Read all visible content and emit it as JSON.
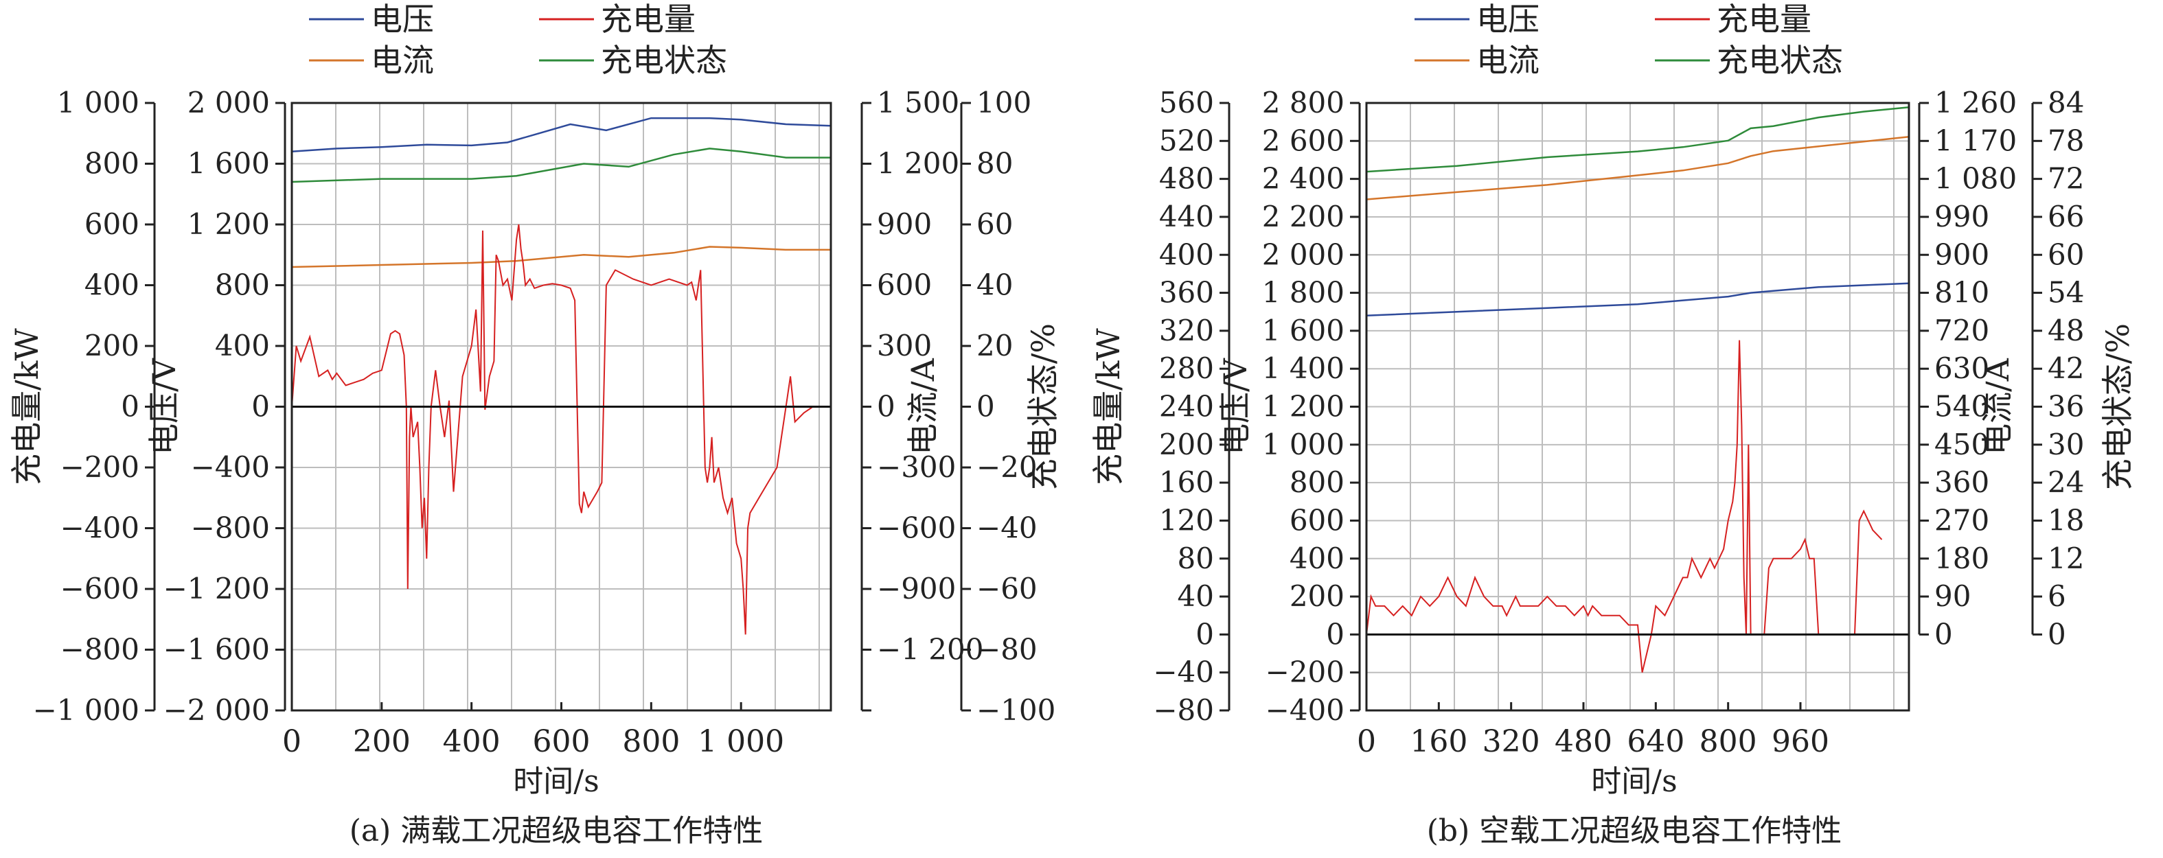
{
  "chart_data": [
    {
      "type": "line",
      "caption": "(a) 满载工况超级电容工作特性",
      "xlabel": "时间/s",
      "xlim": [
        0,
        1200
      ],
      "xticks": [
        0,
        200,
        400,
        600,
        800,
        1000
      ],
      "xtick_labels": [
        "0",
        "200",
        "400",
        "600",
        "800",
        "1 000"
      ],
      "legend": [
        "电压",
        "充电量",
        "电流",
        "充电状态"
      ],
      "axes": [
        {
          "id": "charge",
          "label": "充电量/kW",
          "side": "left-outer",
          "range": [
            -1000,
            1000
          ],
          "ticks": [
            "1 000",
            "800",
            "600",
            "400",
            "200",
            "0",
            "−200",
            "−400",
            "−600",
            "−800",
            "−1 000"
          ]
        },
        {
          "id": "voltage",
          "label": "电压/V",
          "side": "left-inner",
          "range": [
            -2000,
            2000
          ],
          "ticks": [
            "2 000",
            "1 600",
            "1 200",
            "800",
            "400",
            "0",
            "−400",
            "−800",
            "−1 200",
            "−1 600",
            "−2 000"
          ]
        },
        {
          "id": "current",
          "label": "电流/A",
          "side": "right-inner",
          "range": [
            -1500,
            1500
          ],
          "ticks": [
            "1 500",
            "1 200",
            "900",
            "600",
            "300",
            "0",
            "−300",
            "−600",
            "−900",
            "−1 200",
            ""
          ]
        },
        {
          "id": "soc",
          "label": "充电状态/%",
          "side": "right-outer",
          "range": [
            -100,
            100
          ],
          "ticks": [
            "100",
            "80",
            "60",
            "40",
            "20",
            "0",
            "−20",
            "−40",
            "−60",
            "−80",
            "−100"
          ]
        }
      ],
      "series": [
        {
          "name": "电压",
          "axis": "voltage",
          "color": "#2e4a9a",
          "x": [
            0,
            100,
            200,
            300,
            400,
            480,
            550,
            620,
            700,
            800,
            930,
            1000,
            1100,
            1200
          ],
          "y": [
            1680,
            1700,
            1710,
            1725,
            1720,
            1740,
            1800,
            1860,
            1820,
            1900,
            1900,
            1890,
            1860,
            1850
          ]
        },
        {
          "name": "电流",
          "axis": "current",
          "color": "#d4752a",
          "x": [
            0,
            200,
            400,
            500,
            650,
            750,
            850,
            930,
            1000,
            1100,
            1200
          ],
          "y": [
            690,
            700,
            710,
            720,
            750,
            740,
            760,
            790,
            785,
            775,
            775
          ]
        },
        {
          "name": "充电状态",
          "axis": "soc",
          "color": "#2e8b3a",
          "x": [
            0,
            200,
            400,
            500,
            650,
            750,
            850,
            930,
            1000,
            1100,
            1200
          ],
          "y": [
            74,
            75,
            75,
            76,
            80,
            79,
            83,
            85,
            84,
            82,
            82
          ]
        },
        {
          "name": "充电量",
          "axis": "charge",
          "color": "#d62020",
          "x": [
            0,
            10,
            20,
            40,
            60,
            80,
            90,
            100,
            120,
            140,
            160,
            180,
            200,
            220,
            230,
            240,
            250,
            255,
            258,
            262,
            265,
            270,
            280,
            285,
            290,
            295,
            300,
            305,
            310,
            320,
            330,
            340,
            350,
            360,
            380,
            400,
            410,
            420,
            425,
            430,
            440,
            450,
            455,
            460,
            470,
            480,
            490,
            500,
            505,
            510,
            515,
            520,
            525,
            530,
            540,
            560,
            580,
            600,
            620,
            630,
            640,
            645,
            650,
            660,
            680,
            690,
            700,
            720,
            760,
            800,
            840,
            880,
            890,
            900,
            910,
            920,
            925,
            930,
            935,
            940,
            950,
            960,
            970,
            980,
            990,
            1000,
            1005,
            1010,
            1015,
            1020,
            1040,
            1060,
            1080,
            1090,
            1100,
            1110,
            1120,
            1140,
            1160,
            1200
          ],
          "y": [
            0,
            200,
            150,
            230,
            100,
            120,
            90,
            110,
            70,
            80,
            90,
            110,
            120,
            240,
            250,
            240,
            170,
            0,
            -600,
            -100,
            0,
            -100,
            -50,
            -200,
            -400,
            -300,
            -500,
            -200,
            0,
            120,
            0,
            -100,
            20,
            -280,
            100,
            200,
            320,
            50,
            580,
            -10,
            100,
            150,
            500,
            480,
            400,
            420,
            350,
            550,
            600,
            520,
            470,
            400,
            410,
            420,
            390,
            400,
            405,
            400,
            390,
            350,
            -320,
            -350,
            -280,
            -330,
            -280,
            -250,
            400,
            450,
            420,
            400,
            420,
            400,
            410,
            350,
            450,
            -200,
            -250,
            -200,
            -100,
            -250,
            -200,
            -300,
            -350,
            -300,
            -450,
            -500,
            -600,
            -750,
            -400,
            -350,
            -300,
            -250,
            -200,
            -100,
            0,
            100,
            -50,
            -20,
            0,
            0
          ]
        }
      ]
    },
    {
      "type": "line",
      "caption": "(b) 空载工况超级电容工作特性",
      "xlabel": "时间/s",
      "xlim": [
        0,
        1200
      ],
      "xticks": [
        0,
        160,
        320,
        480,
        640,
        800,
        960
      ],
      "xtick_labels": [
        "0",
        "160",
        "320",
        "480",
        "640",
        "800",
        "960"
      ],
      "legend": [
        "电压",
        "充电量",
        "电流",
        "充电状态"
      ],
      "axes": [
        {
          "id": "charge",
          "label": "充电量/kW",
          "side": "left-outer",
          "range": [
            -80,
            560
          ],
          "ticks": [
            "560",
            "520",
            "480",
            "440",
            "400",
            "360",
            "320",
            "280",
            "240",
            "200",
            "160",
            "120",
            "80",
            "40",
            "0",
            "−40",
            "−80"
          ]
        },
        {
          "id": "voltage",
          "label": "电压/V",
          "side": "left-inner",
          "range": [
            -400,
            2800
          ],
          "ticks": [
            "2 800",
            "2 600",
            "2 400",
            "2 200",
            "2 000",
            "1 800",
            "1 600",
            "1 400",
            "1 200",
            "1 000",
            "800",
            "600",
            "400",
            "200",
            "0",
            "−200",
            "−400"
          ]
        },
        {
          "id": "current",
          "label": "电流/A",
          "side": "right-inner",
          "range": [
            0,
            1260
          ],
          "ticks": [
            "1 260",
            "1 170",
            "1 080",
            "990",
            "900",
            "810",
            "720",
            "630",
            "540",
            "450",
            "360",
            "270",
            "180",
            "90",
            "0"
          ]
        },
        {
          "id": "soc",
          "label": "充电状态/%",
          "side": "right-outer",
          "range": [
            0,
            84
          ],
          "ticks": [
            "84",
            "78",
            "72",
            "66",
            "60",
            "54",
            "48",
            "42",
            "36",
            "30",
            "24",
            "18",
            "12",
            "6",
            "0"
          ]
        }
      ],
      "series": [
        {
          "name": "电压",
          "axis": "voltage",
          "color": "#2e4a9a",
          "x": [
            0,
            200,
            400,
            600,
            700,
            800,
            850,
            900,
            1000,
            1100,
            1200
          ],
          "y": [
            1680,
            1700,
            1720,
            1740,
            1760,
            1780,
            1800,
            1810,
            1830,
            1840,
            1850
          ]
        },
        {
          "name": "电流",
          "axis": "current",
          "color": "#d4752a",
          "x": [
            0,
            200,
            400,
            600,
            700,
            800,
            850,
            900,
            1000,
            1100,
            1200
          ],
          "y": [
            1060,
            1075,
            1090,
            1110,
            1120,
            1135,
            1150,
            1160,
            1170,
            1180,
            1190
          ]
        },
        {
          "name": "充电状态",
          "axis": "soc",
          "color": "#2e8b3a",
          "x": [
            0,
            200,
            400,
            600,
            700,
            800,
            850,
            900,
            1000,
            1100,
            1200
          ],
          "y": [
            74.5,
            75.3,
            76.5,
            77.3,
            77.9,
            78.8,
            80.5,
            80.8,
            82.0,
            82.8,
            83.4
          ]
        },
        {
          "name": "充电量",
          "axis": "charge",
          "color": "#d62020",
          "x": [
            0,
            10,
            20,
            40,
            60,
            80,
            100,
            120,
            140,
            160,
            180,
            200,
            220,
            240,
            260,
            280,
            300,
            310,
            320,
            330,
            340,
            360,
            380,
            400,
            420,
            440,
            460,
            480,
            490,
            500,
            520,
            530,
            540,
            560,
            580,
            600,
            610,
            620,
            630,
            640,
            660,
            680,
            700,
            710,
            720,
            740,
            760,
            770,
            780,
            790,
            800,
            810,
            815,
            820,
            825,
            830,
            835,
            840,
            845,
            850,
            860,
            880,
            890,
            900,
            920,
            940,
            960,
            970,
            980,
            990,
            1000,
            1040,
            1060,
            1080,
            1090,
            1100,
            1110,
            1120,
            1140
          ],
          "y": [
            0,
            40,
            30,
            30,
            20,
            30,
            20,
            40,
            30,
            40,
            60,
            40,
            30,
            60,
            40,
            30,
            30,
            20,
            30,
            40,
            30,
            30,
            30,
            40,
            30,
            30,
            20,
            30,
            20,
            30,
            20,
            20,
            20,
            20,
            10,
            10,
            -40,
            -20,
            0,
            30,
            20,
            40,
            60,
            60,
            80,
            60,
            80,
            70,
            80,
            90,
            120,
            140,
            160,
            200,
            310,
            220,
            60,
            0,
            200,
            0,
            0,
            0,
            70,
            80,
            80,
            80,
            90,
            100,
            80,
            80,
            0,
            0,
            0,
            0,
            120,
            130,
            120,
            110,
            100
          ]
        }
      ]
    }
  ]
}
